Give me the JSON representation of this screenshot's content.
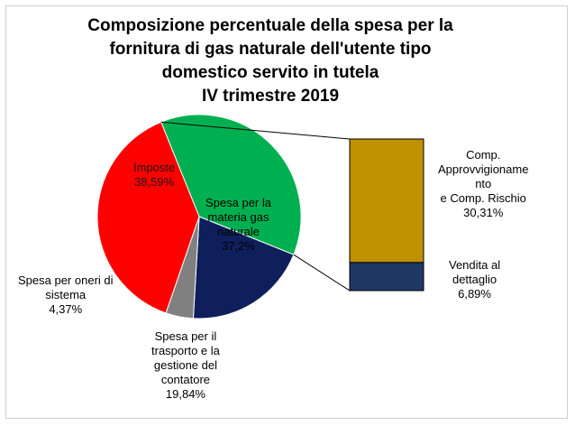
{
  "title_lines": [
    "Composizione percentuale della spesa per la",
    "fornitura di gas naturale dell'utente tipo",
    "domestico servito in tutela",
    "IV trimestre 2019"
  ],
  "chart_data": [
    {
      "type": "pie",
      "slices": [
        {
          "label_lines": [
            "Spesa per la",
            "materia gas",
            "naturale"
          ],
          "value": 37.2,
          "value_label": "37,2%",
          "color": "#00b050"
        },
        {
          "label_lines": [
            "Spesa per il",
            "trasporto e la",
            "gestione del",
            "contatore"
          ],
          "value": 19.84,
          "value_label": "19,84%",
          "color": "#0f1f5c"
        },
        {
          "label_lines": [
            "Spesa per oneri di",
            "sistema"
          ],
          "value": 4.37,
          "value_label": "4,37%",
          "color": "#808080"
        },
        {
          "label_lines": [
            "Imposte"
          ],
          "value": 38.59,
          "value_label": "38,59%",
          "color": "#ff0000"
        }
      ]
    },
    {
      "type": "bar",
      "stacked": true,
      "breakdown_of": "Spesa per la materia gas naturale",
      "segments": [
        {
          "label_lines": [
            "Comp.",
            "Approvvigioname",
            "nto",
            "e  Comp. Rischio"
          ],
          "value": 30.31,
          "value_label": "30,31%",
          "color": "#bf9000"
        },
        {
          "label_lines": [
            "Vendita al",
            "dettaglio"
          ],
          "value": 6.89,
          "value_label": "6,89%",
          "color": "#1f3864"
        }
      ]
    }
  ]
}
